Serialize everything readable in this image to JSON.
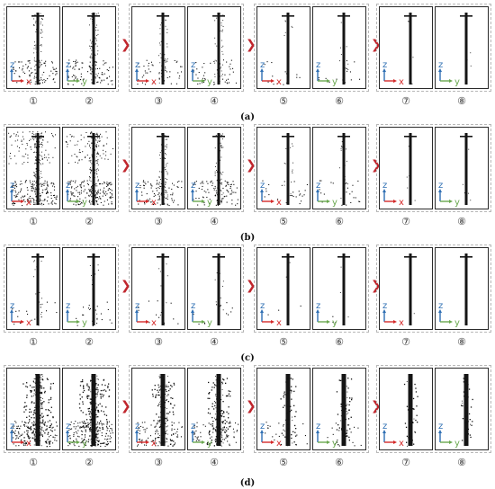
{
  "rows": [
    {
      "caption": "(a)",
      "pole": "lattice",
      "labels": [
        "①",
        "②",
        "③",
        "④",
        "⑤",
        "⑥",
        "⑦",
        "⑧"
      ]
    },
    {
      "caption": "(b)",
      "pole": "cluttered",
      "labels": [
        "①",
        "②",
        "③",
        "④",
        "⑤",
        "⑥",
        "⑦",
        "⑧"
      ]
    },
    {
      "caption": "(c)",
      "pole": "simple",
      "labels": [
        "①",
        "②",
        "③",
        "④",
        "⑤",
        "⑥",
        "⑦",
        "⑧"
      ]
    },
    {
      "caption": "(d)",
      "pole": "dense",
      "labels": [
        "①",
        "②",
        "③",
        "④",
        "⑤",
        "⑥",
        "⑦",
        "⑧"
      ]
    }
  ],
  "axes": {
    "z": "z",
    "x": "x",
    "y": "y",
    "z_color": "#2f6fb3",
    "x_color": "#d42a2a",
    "y_color": "#6aa84f"
  },
  "arrow_glyph": "❯",
  "arrow_color": "#c0262d",
  "icons": {
    "arrow": "chevron-right-icon",
    "axes": "axis-triad-icon"
  }
}
